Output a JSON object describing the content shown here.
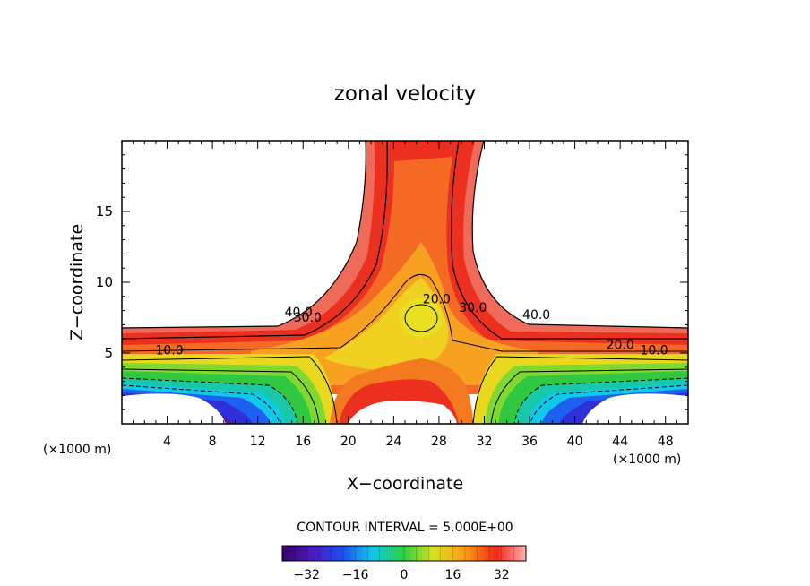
{
  "chart_data": {
    "type": "contour",
    "title": "zonal velocity",
    "xlabel": "X−coordinate",
    "ylabel": "Z−coordinate",
    "x_unit_left": "(×1000 m)",
    "x_unit_right": "(×1000 m)",
    "xlim": [
      0,
      50
    ],
    "ylim": [
      0,
      20
    ],
    "x_ticks": [
      4,
      8,
      12,
      16,
      20,
      24,
      28,
      32,
      36,
      40,
      44,
      48
    ],
    "y_ticks": [
      5,
      10,
      15
    ],
    "contour_interval_text": "CONTOUR INTERVAL = 5.000E+00",
    "contour_interval": 5.0,
    "contour_labels": [
      {
        "text": "40.0",
        "x": 15.6,
        "y": 7.6
      },
      {
        "text": "30.0",
        "x": 16.4,
        "y": 7.2
      },
      {
        "text": "10.0",
        "x": 4.2,
        "y": 4.9
      },
      {
        "text": "20.0",
        "x": 27.8,
        "y": 8.5
      },
      {
        "text": "30.0",
        "x": 31.0,
        "y": 7.9
      },
      {
        "text": "40.0",
        "x": 36.6,
        "y": 7.4
      },
      {
        "text": "20.0",
        "x": 44.0,
        "y": 5.3
      },
      {
        "text": "10.0",
        "x": 47.0,
        "y": 4.9
      }
    ],
    "colorbar": {
      "min": -40,
      "max": 40,
      "ticks": [
        -32,
        -16,
        0,
        16,
        32
      ]
    },
    "colors": {
      "deep_negative": "#3a0a7a",
      "negative": "#1f3ee0",
      "cyan": "#10c8e0",
      "zero_green": "#30d030",
      "yellow": "#f0e020",
      "orange": "#ff9020",
      "red": "#e82818",
      "pink": "#ffb0b0"
    }
  }
}
